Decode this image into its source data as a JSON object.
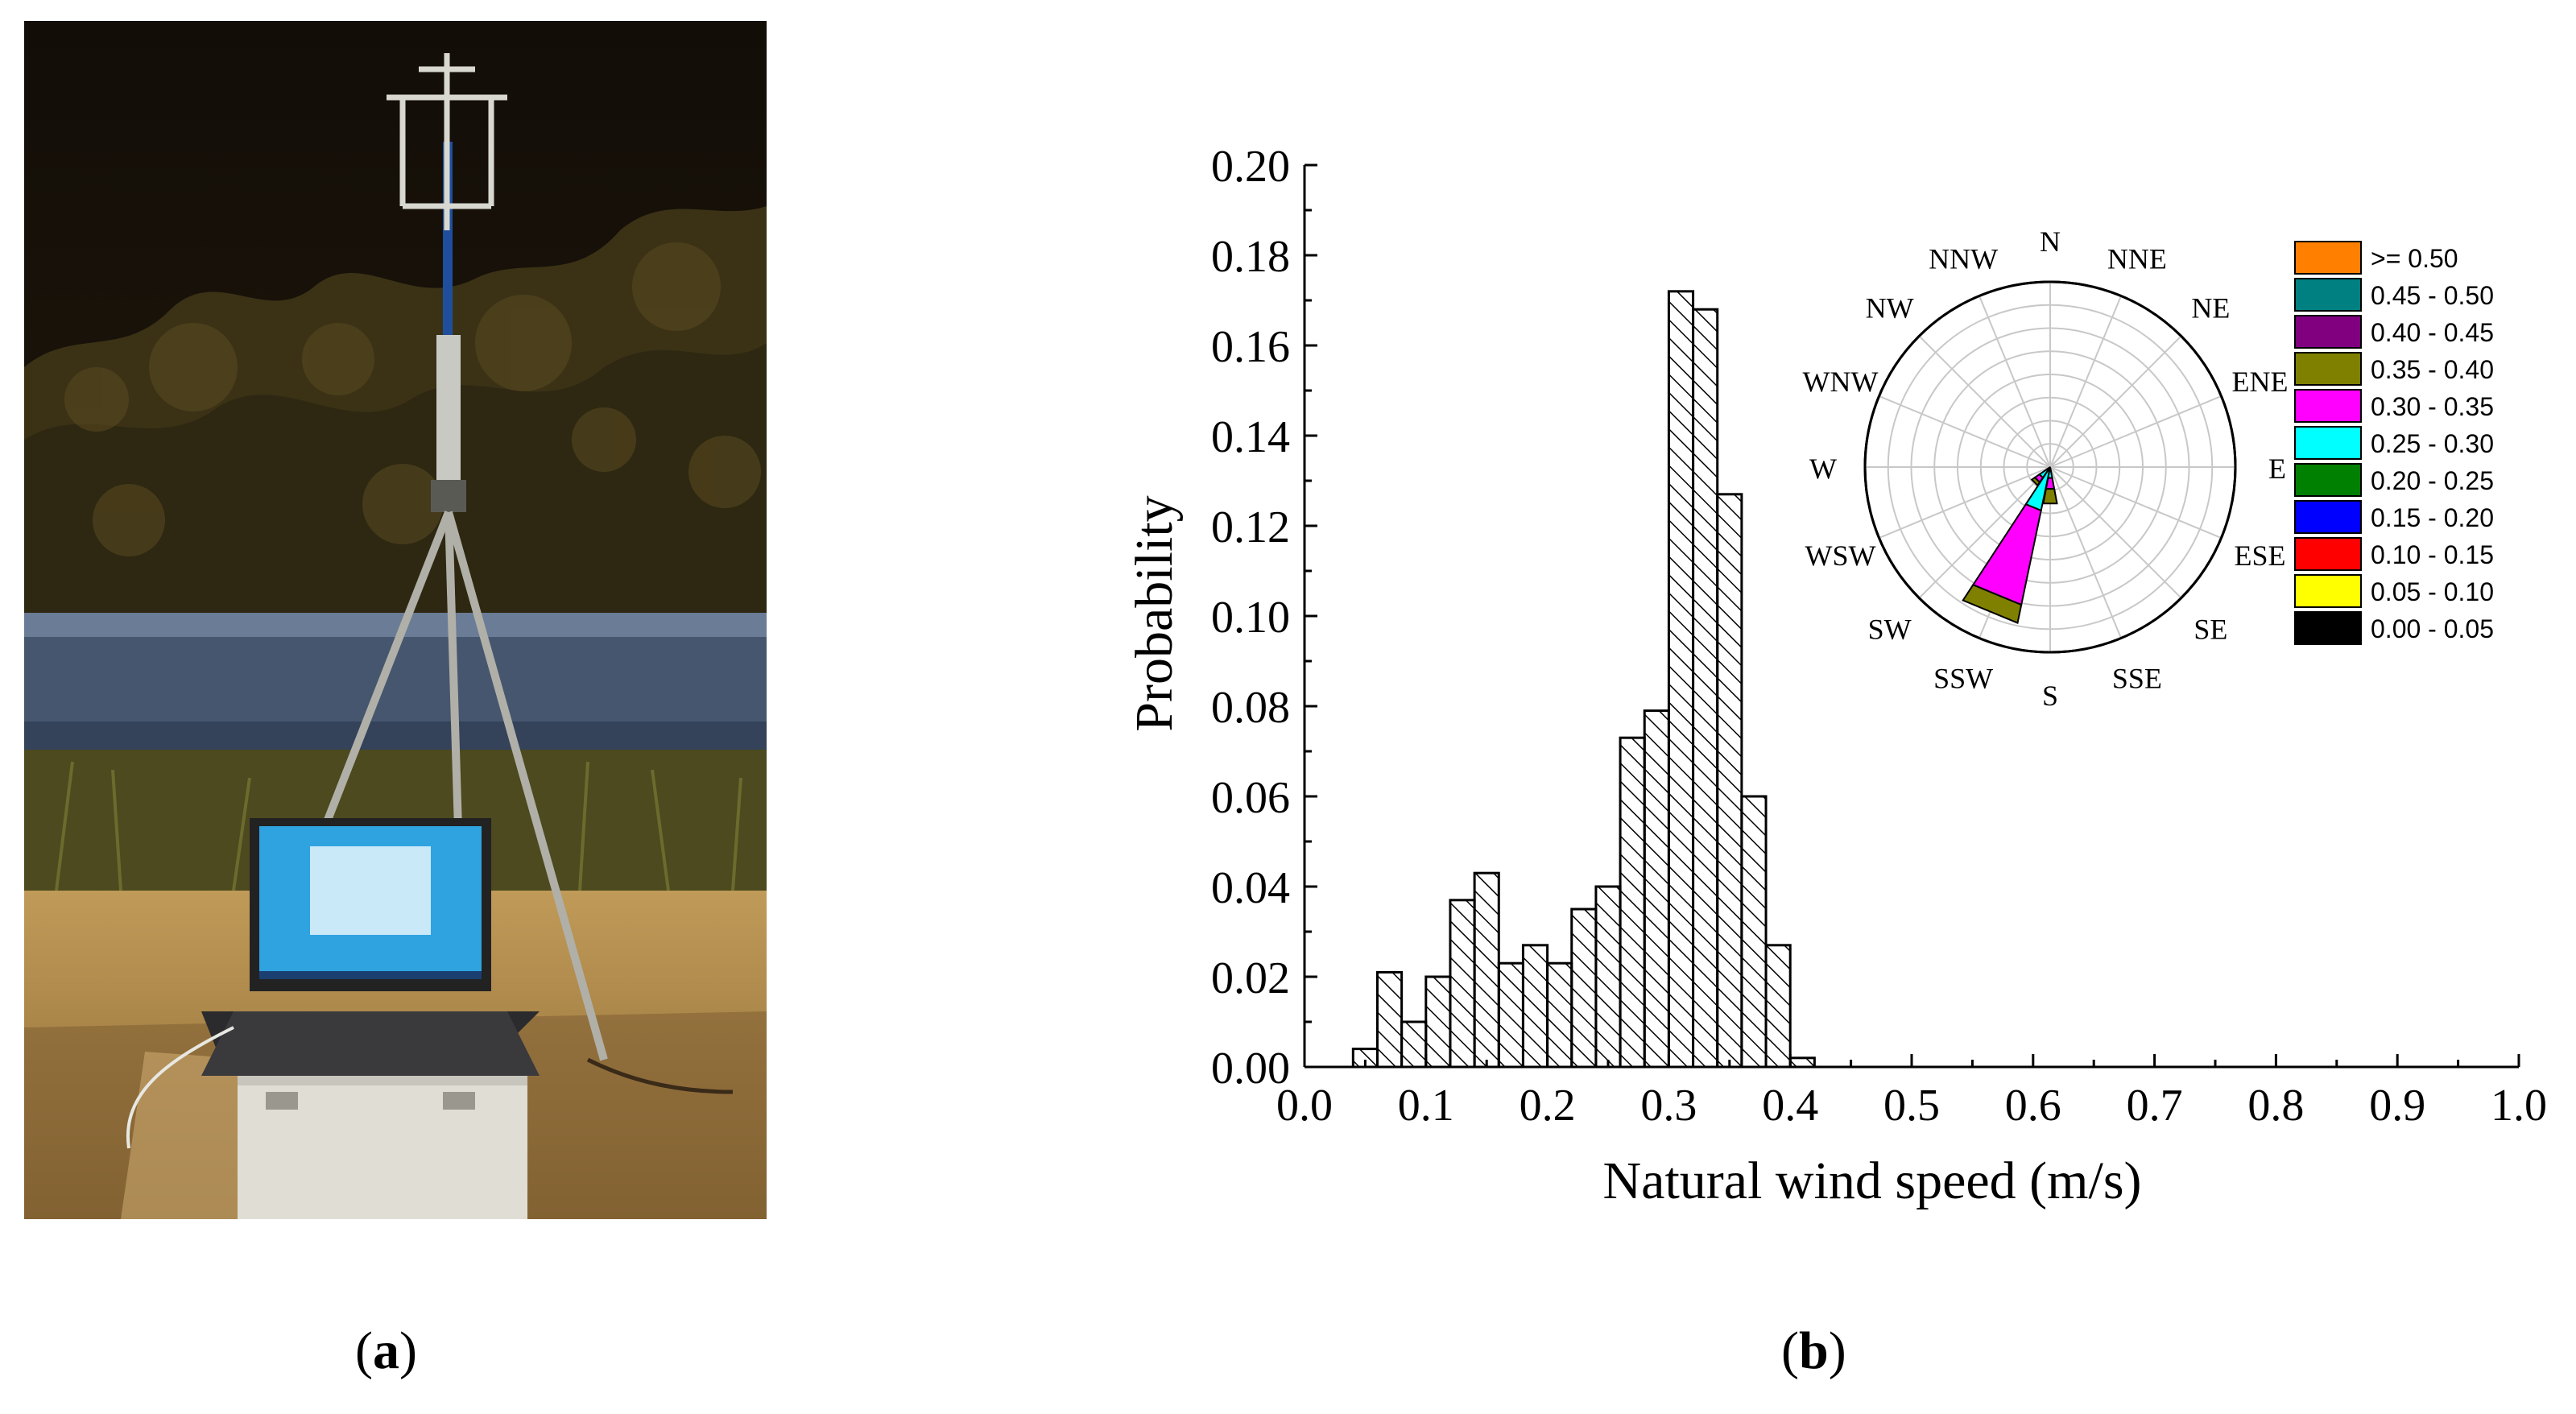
{
  "captions": {
    "a_letter": "a",
    "b_letter": "b"
  },
  "photo": {
    "description_icon": "anemometer-tripod-photo-icon",
    "colors": {
      "sky": "#1a140c",
      "foliage": "#3a3115",
      "guardrail": "#4a5c78",
      "ground": "#b48b49"
    }
  },
  "chart_data": [
    {
      "type": "bar",
      "title": "",
      "xlabel": "Natural wind speed (m/s)",
      "ylabel": "Probability",
      "xlim": [
        0.0,
        1.0
      ],
      "ylim": [
        0.0,
        0.2
      ],
      "xticks": [
        "0.0",
        "0.1",
        "0.2",
        "0.3",
        "0.4",
        "0.5",
        "0.6",
        "0.7",
        "0.8",
        "0.9",
        "1.0"
      ],
      "yticks": [
        "0.00",
        "0.02",
        "0.04",
        "0.06",
        "0.08",
        "0.10",
        "0.12",
        "0.14",
        "0.16",
        "0.18",
        "0.20"
      ],
      "bin_width": 0.02,
      "bin_starts": [
        0.04,
        0.06,
        0.08,
        0.1,
        0.12,
        0.14,
        0.16,
        0.18,
        0.2,
        0.22,
        0.24,
        0.26,
        0.28,
        0.3,
        0.32,
        0.34,
        0.36,
        0.38,
        0.4
      ],
      "values": [
        0.004,
        0.021,
        0.01,
        0.02,
        0.037,
        0.043,
        0.023,
        0.027,
        0.023,
        0.035,
        0.04,
        0.073,
        0.079,
        0.172,
        0.168,
        0.127,
        0.06,
        0.027,
        0.002
      ],
      "fill": "hatched"
    },
    {
      "type": "wind-rose",
      "directions": [
        "N",
        "NNE",
        "NE",
        "ENE",
        "E",
        "ESE",
        "SE",
        "SSE",
        "S",
        "SSW",
        "SW",
        "WSW",
        "W",
        "WNW",
        "NW",
        "NNW"
      ],
      "speed_bins": [
        ">= 0.50",
        "0.45 - 0.50",
        "0.40 - 0.45",
        "0.35 - 0.40",
        "0.30 - 0.35",
        "0.25 - 0.30",
        "0.20 - 0.25",
        "0.15 - 0.20",
        "0.10 - 0.15",
        "0.05 - 0.10",
        "0.00 - 0.05"
      ],
      "bin_colors": [
        "#ff8000",
        "#008080",
        "#800080",
        "#808000",
        "#ff00ff",
        "#00ffff",
        "#008000",
        "#0000ff",
        "#ff0000",
        "#ffff00",
        "#000000"
      ],
      "rmax": 1.0,
      "rings": 8,
      "sectors": [
        {
          "direction": "SSW",
          "stack": [
            {
              "bin": "0.25 - 0.30",
              "r": 0.24
            },
            {
              "bin": "0.30 - 0.35",
              "r": 0.76
            },
            {
              "bin": "0.35 - 0.40",
              "r": 0.86
            }
          ]
        },
        {
          "direction": "SW",
          "stack": [
            {
              "bin": "0.25 - 0.30",
              "r": 0.07
            },
            {
              "bin": "0.30 - 0.35",
              "r": 0.1
            },
            {
              "bin": "0.35 - 0.40",
              "r": 0.12
            }
          ]
        },
        {
          "direction": "S",
          "stack": [
            {
              "bin": "0.25 - 0.30",
              "r": 0.06
            },
            {
              "bin": "0.30 - 0.35",
              "r": 0.12
            },
            {
              "bin": "0.35 - 0.40",
              "r": 0.2
            }
          ]
        }
      ],
      "legend_placement": "right"
    }
  ]
}
